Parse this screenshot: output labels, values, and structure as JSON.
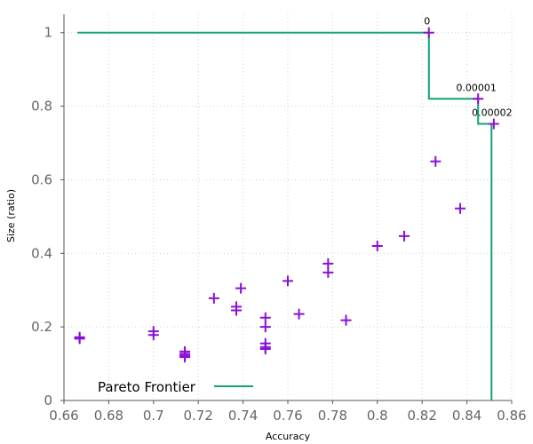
{
  "chart_data": {
    "type": "scatter",
    "xlabel": "Accuracy",
    "ylabel": "Size (ratio)",
    "xlim": [
      0.66,
      0.86
    ],
    "ylim": [
      0,
      1.05
    ],
    "xticks": [
      0.66,
      0.68,
      0.7,
      0.72,
      0.74,
      0.76,
      0.78,
      0.8,
      0.82,
      0.84,
      0.86
    ],
    "xtick_labels": [
      "0.66",
      "0.68",
      "0.7",
      "0.72",
      "0.74",
      "0.76",
      "0.78",
      "0.8",
      "0.82",
      "0.84",
      "0.86"
    ],
    "yticks": [
      0,
      0.2,
      0.4,
      0.6,
      0.8,
      1
    ],
    "ytick_labels": [
      "0",
      "0.2",
      "0.4",
      "0.6",
      "0.8",
      "1"
    ],
    "grid": true,
    "legend_position": "bottom-left",
    "marker_color": "#8a10d8",
    "frontier_color": "#10a37a",
    "points": [
      {
        "x": 0.823,
        "y": 1.0
      },
      {
        "x": 0.845,
        "y": 0.82
      },
      {
        "x": 0.852,
        "y": 0.752
      },
      {
        "x": 0.826,
        "y": 0.65
      },
      {
        "x": 0.837,
        "y": 0.522
      },
      {
        "x": 0.812,
        "y": 0.447
      },
      {
        "x": 0.8,
        "y": 0.42
      },
      {
        "x": 0.778,
        "y": 0.372
      },
      {
        "x": 0.778,
        "y": 0.348
      },
      {
        "x": 0.76,
        "y": 0.325
      },
      {
        "x": 0.739,
        "y": 0.305
      },
      {
        "x": 0.727,
        "y": 0.278
      },
      {
        "x": 0.737,
        "y": 0.255
      },
      {
        "x": 0.737,
        "y": 0.245
      },
      {
        "x": 0.765,
        "y": 0.235
      },
      {
        "x": 0.75,
        "y": 0.225
      },
      {
        "x": 0.786,
        "y": 0.218
      },
      {
        "x": 0.75,
        "y": 0.2
      },
      {
        "x": 0.7,
        "y": 0.188
      },
      {
        "x": 0.7,
        "y": 0.178
      },
      {
        "x": 0.667,
        "y": 0.172
      },
      {
        "x": 0.667,
        "y": 0.168
      },
      {
        "x": 0.75,
        "y": 0.155
      },
      {
        "x": 0.75,
        "y": 0.145
      },
      {
        "x": 0.75,
        "y": 0.14
      },
      {
        "x": 0.714,
        "y": 0.133
      },
      {
        "x": 0.714,
        "y": 0.127
      },
      {
        "x": 0.714,
        "y": 0.122
      },
      {
        "x": 0.714,
        "y": 0.118
      }
    ],
    "frontier": {
      "name": "Pareto Frontier",
      "x": [
        0.666,
        0.823,
        0.823,
        0.845,
        0.845,
        0.851,
        0.851
      ],
      "y": [
        1.0,
        1.0,
        0.82,
        0.82,
        0.752,
        0.752,
        0.0
      ]
    },
    "annotations": [
      {
        "text": "0",
        "x": 0.823,
        "y": 1.0
      },
      {
        "text": "0.00001",
        "x": 0.845,
        "y": 0.82
      },
      {
        "text": "0.00002",
        "x": 0.852,
        "y": 0.752
      }
    ]
  }
}
